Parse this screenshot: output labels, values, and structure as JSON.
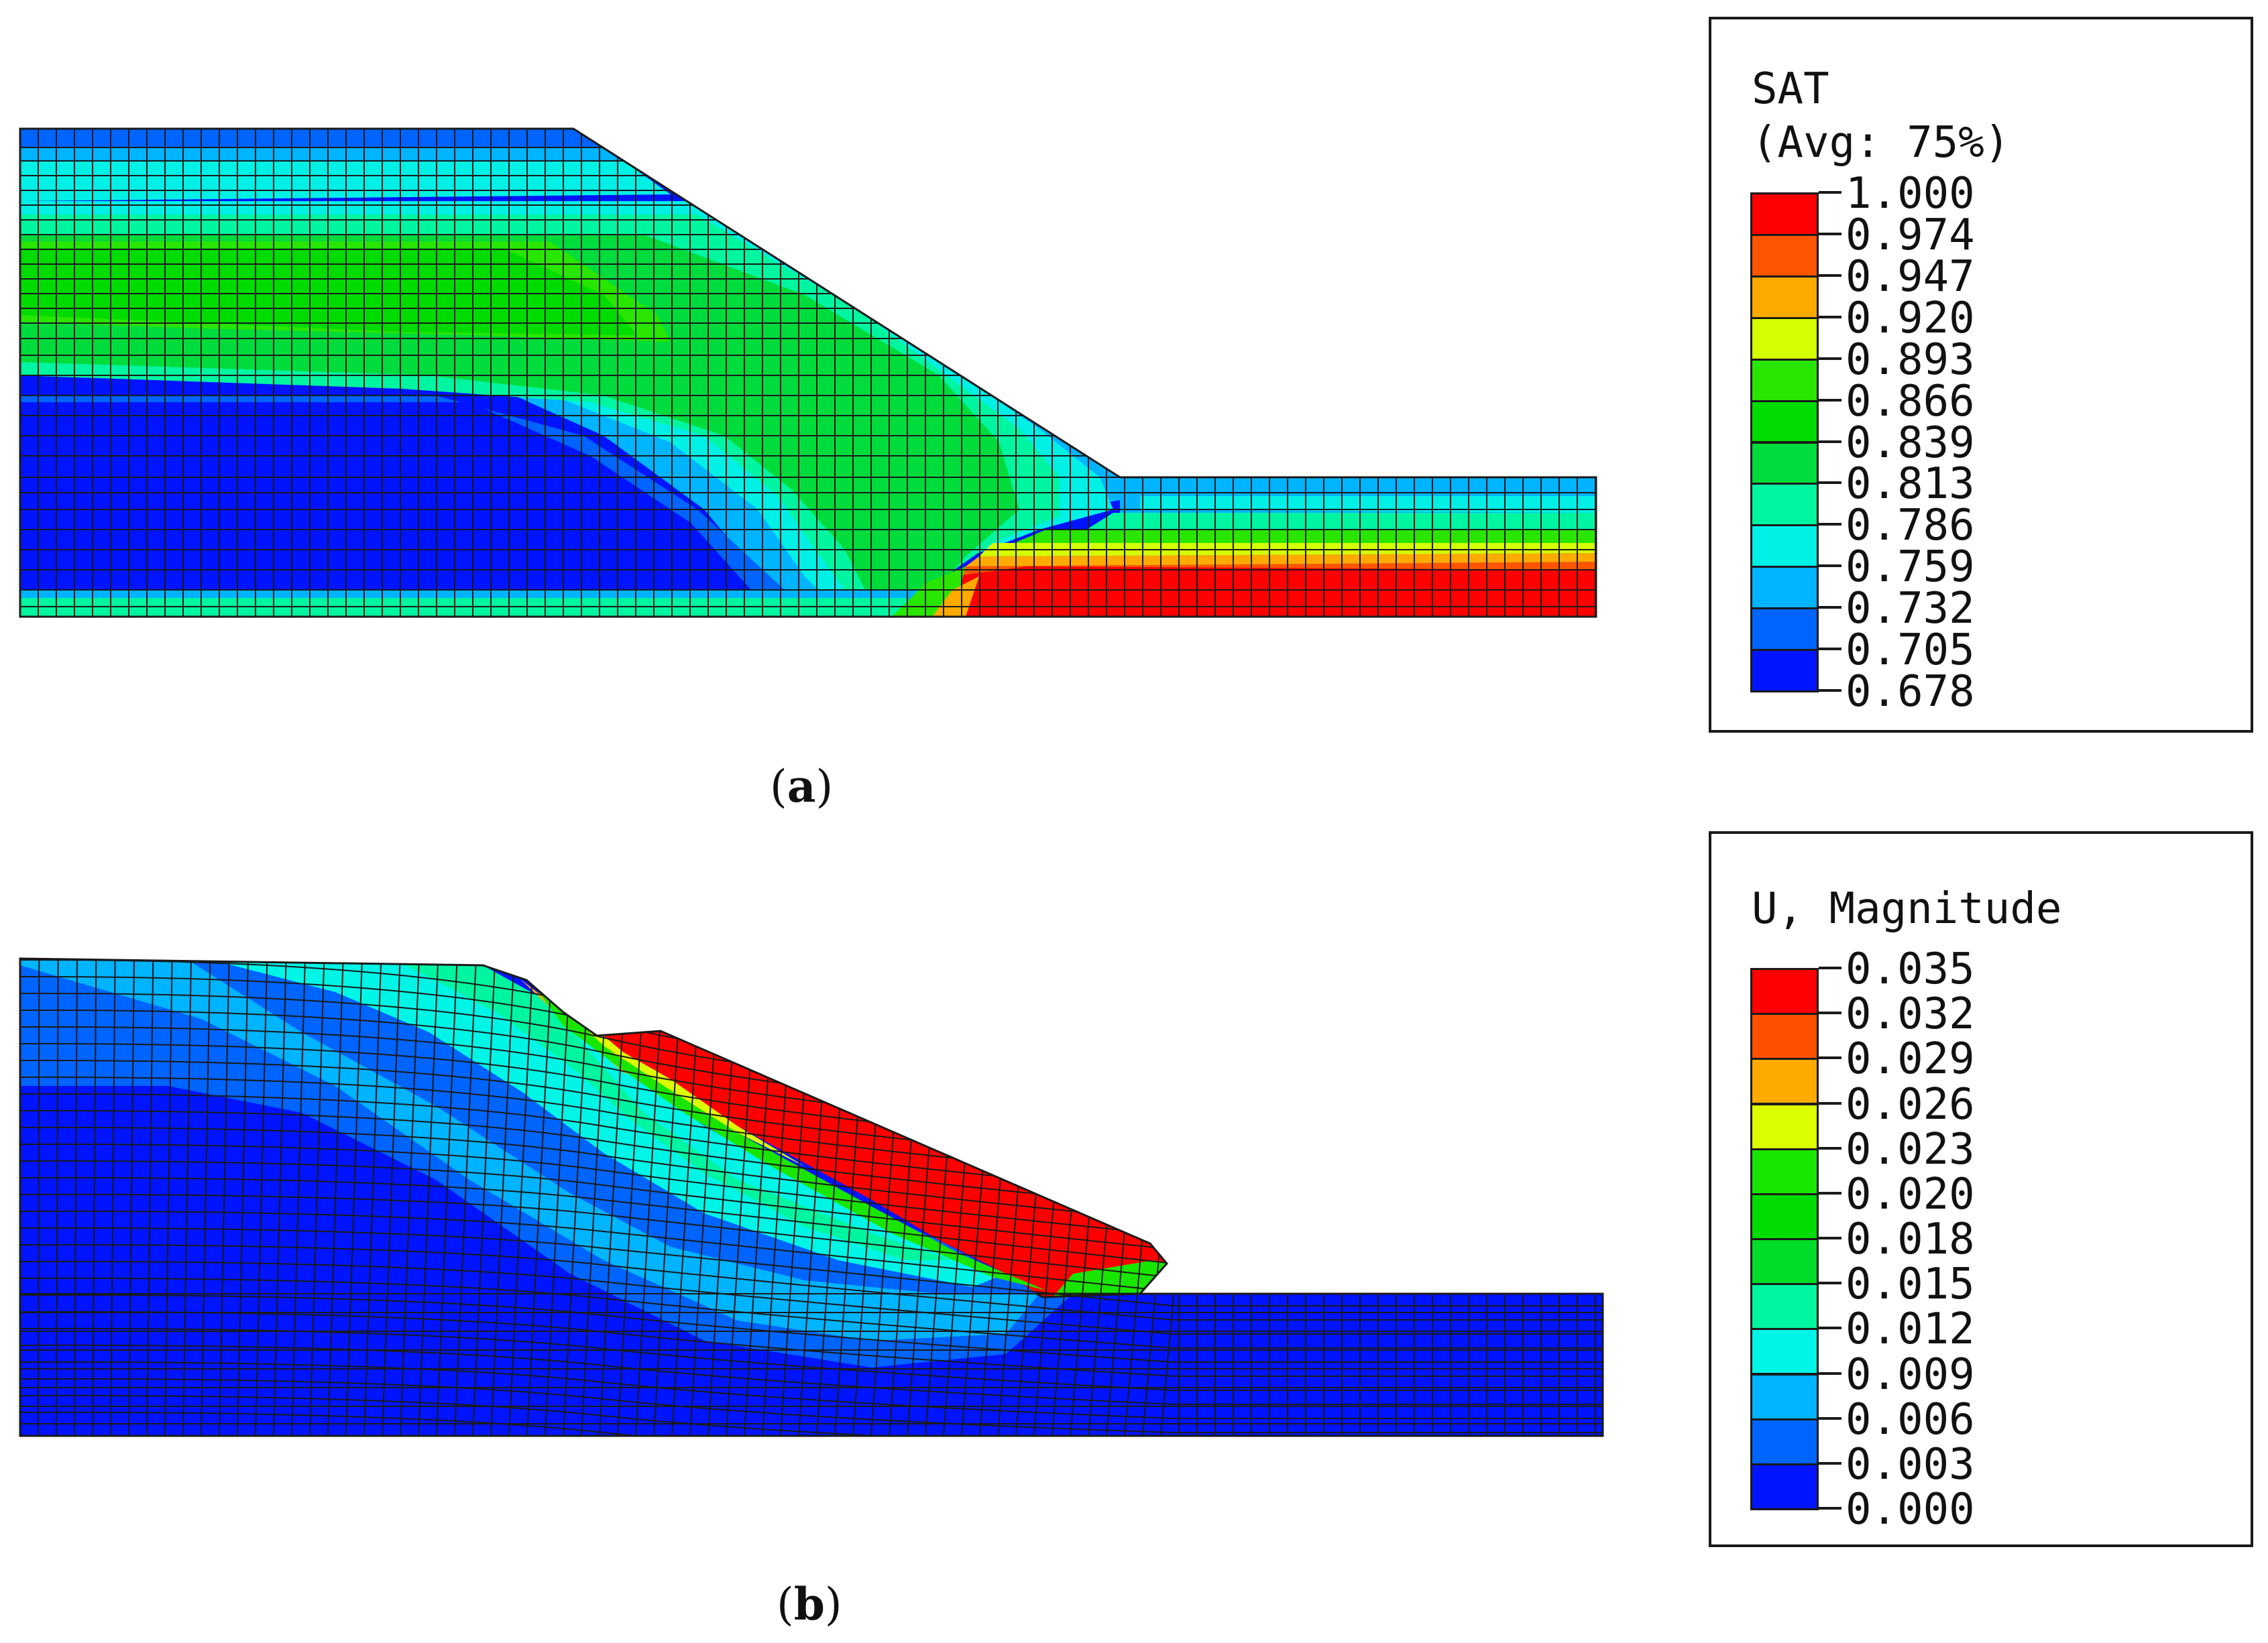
{
  "panels": [
    {
      "id": "a",
      "caption_letter": "a",
      "legend": {
        "title_lines": [
          "SAT",
          "(Avg: 75%)"
        ],
        "values": [
          "1.000",
          "0.974",
          "0.947",
          "0.920",
          "0.893",
          "0.866",
          "0.839",
          "0.813",
          "0.786",
          "0.759",
          "0.732",
          "0.705",
          "0.678"
        ]
      }
    },
    {
      "id": "b",
      "caption_letter": "b",
      "legend": {
        "title_lines": [
          "U, Magnitude"
        ],
        "values": [
          "0.035",
          "0.032",
          "0.029",
          "0.026",
          "0.023",
          "0.020",
          "0.018",
          "0.015",
          "0.012",
          "0.009",
          "0.006",
          "0.003",
          "0.000"
        ]
      }
    }
  ],
  "colors": {
    "scale": [
      "#ff0000",
      "#ff5a00",
      "#ffb400",
      "#dcff00",
      "#3cff00",
      "#00e632",
      "#00f5a0",
      "#00f5e6",
      "#00b4ff",
      "#0064ff",
      "#0000ff"
    ],
    "scale_a": [
      "#ff0000",
      "#ff5500",
      "#ffaa00",
      "#d4ff00",
      "#28e600",
      "#00dc00",
      "#00dc3c",
      "#00f5a0",
      "#00f0e6",
      "#00b4ff",
      "#0064ff",
      "#0014ff"
    ],
    "scale_b": [
      "#ff0000",
      "#ff5000",
      "#ffaa00",
      "#dcff00",
      "#19e600",
      "#00dc00",
      "#00dc28",
      "#00f5a0",
      "#00f5e6",
      "#00b4ff",
      "#0064ff",
      "#0014ff"
    ],
    "mesh": "#1a1a1a"
  }
}
